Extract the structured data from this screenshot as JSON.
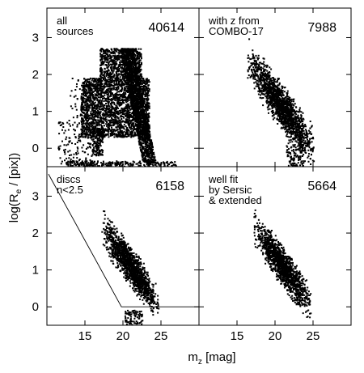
{
  "chart_data": {
    "type": "scatter",
    "xlabel_main": "m",
    "xlabel_sub": "z",
    "xlabel_rest": " [mag]",
    "ylabel_pre": "log(R",
    "ylabel_sub": "e",
    "ylabel_post": " / [pix])",
    "xlim": [
      10,
      30
    ],
    "ylim": [
      -0.5,
      3.8
    ],
    "x_ticks": [
      15,
      20,
      25
    ],
    "y_ticks": [
      0,
      1,
      2,
      3
    ],
    "panels": [
      {
        "id": "all",
        "label_lines": [
          "all",
          "sources"
        ],
        "count": "40614",
        "clusters": [
          {
            "shape": "blob",
            "xmin": 14.5,
            "xmax": 23.5,
            "ymin": 0.3,
            "ymax": 1.9,
            "n": 2400
          },
          {
            "shape": "blob",
            "xmin": 17.0,
            "xmax": 22.5,
            "ymin": 1.9,
            "ymax": 2.7,
            "n": 700
          },
          {
            "shape": "band",
            "x0": 20.5,
            "x1": 23.5,
            "y0": 2.7,
            "y1": -0.4,
            "width": 1.7,
            "n": 1400
          },
          {
            "shape": "blob",
            "xmin": 16.0,
            "xmax": 17.4,
            "ymin": -0.2,
            "ymax": 0.55,
            "n": 160
          },
          {
            "shape": "blob",
            "xmin": 11.5,
            "xmax": 16.0,
            "ymin": -0.45,
            "ymax": 0.8,
            "n": 140
          },
          {
            "shape": "blob",
            "xmin": 12.5,
            "xmax": 27.0,
            "ymin": -0.5,
            "ymax": -0.35,
            "n": 260
          },
          {
            "shape": "blob",
            "xmin": 13.0,
            "xmax": 14.5,
            "ymin": 0.5,
            "ymax": 1.9,
            "n": 25
          }
        ]
      },
      {
        "id": "combo",
        "label_lines": [
          "with z from",
          "COMBO-17"
        ],
        "count": "7988",
        "clusters": [
          {
            "shape": "ellipse",
            "cx": 20.8,
            "cy": 1.15,
            "rx": 4.0,
            "ry": 0.55,
            "tilt": -0.28,
            "n": 1700
          },
          {
            "shape": "blob",
            "xmin": 21.5,
            "xmax": 23.8,
            "ymin": -0.5,
            "ymax": 0.2,
            "n": 110
          }
        ]
      },
      {
        "id": "discs",
        "label_lines": [
          "discs",
          "n<2.5"
        ],
        "count": "6158",
        "clusters": [
          {
            "shape": "ellipse",
            "cx": 21.0,
            "cy": 1.1,
            "rx": 3.4,
            "ry": 0.48,
            "tilt": -0.28,
            "n": 1500
          },
          {
            "shape": "blob",
            "xmin": 20.3,
            "xmax": 22.6,
            "ymin": -0.5,
            "ymax": -0.1,
            "n": 90
          }
        ],
        "selection_line": [
          [
            10.2,
            3.6
          ],
          [
            19.8,
            0.0
          ],
          [
            30.0,
            0.0
          ]
        ]
      },
      {
        "id": "sersic",
        "label_lines": [
          "well fit",
          "by Sersic",
          "& extended"
        ],
        "count": "5664",
        "clusters": [
          {
            "shape": "ellipse",
            "cx": 21.0,
            "cy": 1.1,
            "rx": 3.4,
            "ry": 0.48,
            "tilt": -0.28,
            "n": 1450
          }
        ]
      }
    ]
  }
}
